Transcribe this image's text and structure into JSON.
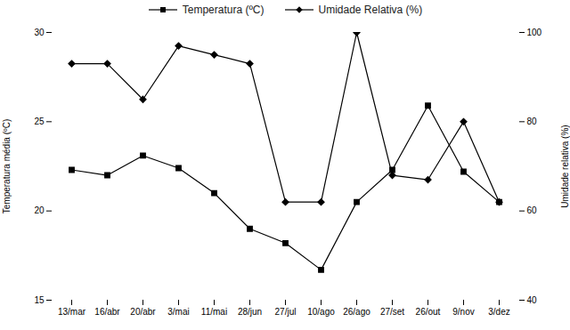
{
  "chart_data": {
    "type": "line",
    "categories": [
      "13/mar",
      "16/abr",
      "20/abr",
      "3/mai",
      "11/mai",
      "28/jun",
      "27/jul",
      "10/ago",
      "26/ago",
      "27/set",
      "26/out",
      "9/nov",
      "3/dez"
    ],
    "series": [
      {
        "name": "Temperatura (ºC)",
        "color": "#000000",
        "marker": "square",
        "values": [
          22.3,
          22.0,
          23.1,
          22.4,
          21.0,
          19.0,
          18.2,
          16.7,
          20.5,
          22.3,
          25.9,
          22.2,
          20.5
        ]
      },
      {
        "name": "Umidade Relativa (%)",
        "color": "#000000",
        "marker": "diamond",
        "axis": "y2",
        "values": [
          93,
          93,
          85,
          97,
          95,
          93,
          62,
          62,
          100,
          68,
          67,
          80,
          62
        ]
      }
    ],
    "ylabel": "Temperatura média (ºC)",
    "y2label": "Umidade relativa (%)",
    "ylim": [
      15,
      30
    ],
    "yticks": [
      15,
      20,
      25,
      30
    ],
    "y2lim": [
      40,
      100
    ],
    "y2ticks": [
      40,
      60,
      80,
      100
    ],
    "legend": "top",
    "grid": false
  }
}
